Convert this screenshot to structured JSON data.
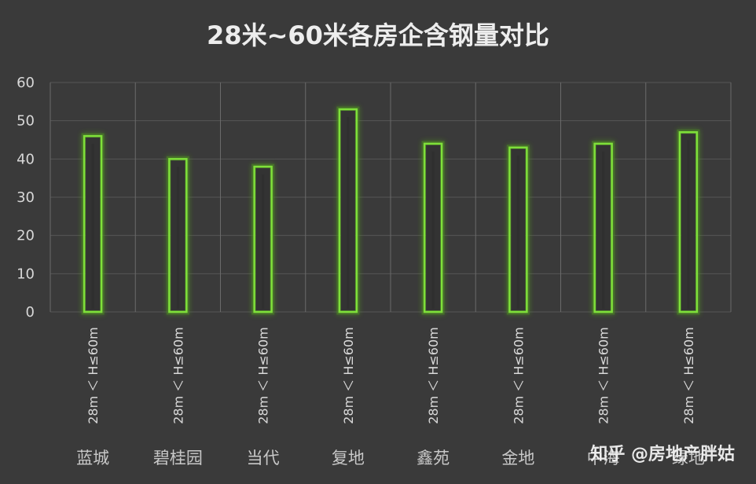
{
  "chart_data": {
    "type": "bar",
    "title": "28米~60米各房企含钢量对比",
    "categories": [
      "蓝城",
      "碧桂园",
      "当代",
      "复地",
      "鑫苑",
      "金地",
      "中海",
      "绿地"
    ],
    "sub_category_label": "28m ＜ H≤60m",
    "values": [
      46,
      40,
      38,
      53,
      44,
      43,
      44,
      47
    ],
    "yticks": [
      0,
      10,
      20,
      30,
      40,
      50,
      60
    ],
    "ylim": [
      0,
      60
    ],
    "grid": true,
    "legend": "none",
    "colors": {
      "background": "#3a3a3a",
      "bar_outline": "#7fe03a",
      "bar_glow": "#4e8a24",
      "bar_inner_line": "#2f2f2f",
      "grid": "#6a6a6a"
    }
  },
  "watermark": "知乎 @房地产胖姑"
}
